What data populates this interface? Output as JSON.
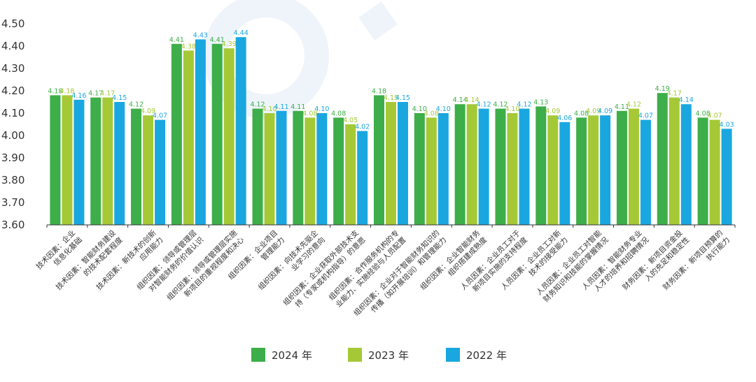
{
  "chart_data": {
    "type": "bar",
    "ylim": [
      3.6,
      4.5
    ],
    "yticks": [
      "4.50",
      "4.40",
      "4.30",
      "4.20",
      "4.10",
      "4.00",
      "3.90",
      "3.80",
      "3.70",
      "3.60"
    ],
    "ytick_values": [
      4.5,
      4.4,
      4.3,
      4.2,
      4.1,
      4.0,
      3.9,
      3.8,
      3.7,
      3.6
    ],
    "grid": false,
    "legend_position": "bottom-center",
    "categories": [
      [
        "技术因素：企业",
        "信息化基础"
      ],
      [
        "技术因素：智能财务建设",
        "的技术配套程度"
      ],
      [
        "技术因素：新技术的创新",
        "应用能力"
      ],
      [
        "组织因素：领导或管理层",
        "对智能财务的价值认识"
      ],
      [
        "组织因素：领导或管理层实施",
        "新项目的重视程度和决心"
      ],
      [
        "组织因素：企业项目",
        "管理能力"
      ],
      [
        "组织因素：向技术先驱企",
        "业学习的意向"
      ],
      [
        "组织因素：企业获取外部技术支",
        "持（专家或机构指导）的意愿"
      ],
      [
        "组织因素：合作服务机构的专",
        "业能力、实施经验与人员配置"
      ],
      [
        "组织因素：企业对于智能财务知识的",
        "传播（如开展培训）和管理能力"
      ],
      [
        "组织因素：企业智能财务",
        "组织搭建成熟度"
      ],
      [
        "人员因素：企业员工对于",
        "新项目实施的支持程度"
      ],
      [
        "人员因素：企业员工对新",
        "技术的接受能力"
      ],
      [
        "人员因素：企业员工对智能",
        "财务知识和技能的掌握情况"
      ],
      [
        "人员因素：智能财务专业",
        "人才的培养和招聘情况"
      ],
      [
        "财务因素：新项目资金投",
        "入的充足和稳定性"
      ],
      [
        "财务因素：新项目预算的",
        "执行能力"
      ]
    ],
    "series": [
      {
        "name": "2024 年",
        "color": "#3DAE49",
        "values": [
          4.18,
          4.17,
          4.12,
          4.41,
          4.41,
          4.12,
          4.11,
          4.08,
          4.18,
          4.1,
          4.14,
          4.12,
          4.13,
          4.08,
          4.11,
          4.19,
          4.08
        ],
        "labels": [
          "4.18",
          "4.17",
          "4.12",
          "4.41",
          "4.41",
          "4.12",
          "4.11",
          "4.08",
          "4.18",
          "4.10",
          "4.14",
          "4.12",
          "4.13",
          "4.08",
          "4.11",
          "4.19",
          "4.08"
        ]
      },
      {
        "name": "2023 年",
        "color": "#A5C936",
        "values": [
          4.18,
          4.17,
          4.09,
          4.38,
          4.39,
          4.1,
          4.08,
          4.05,
          4.15,
          4.08,
          4.14,
          4.1,
          4.09,
          4.09,
          4.12,
          4.17,
          4.07
        ],
        "labels": [
          "4.18",
          "4.17",
          "4.09",
          "4.38",
          "4.39",
          "4.10",
          "4.08",
          "4.05",
          "4.15",
          "4.08",
          "4.14",
          "4.10",
          "4.09",
          "4.09",
          "4.12",
          "4.17",
          "4.07"
        ]
      },
      {
        "name": "2022 年",
        "color": "#1AA7E0",
        "values": [
          4.16,
          4.15,
          4.07,
          4.43,
          4.44,
          4.11,
          4.1,
          4.02,
          4.15,
          4.1,
          4.12,
          4.12,
          4.06,
          4.09,
          4.07,
          4.14,
          4.03
        ],
        "labels": [
          "4.16",
          "4.15",
          "4.07",
          "4.43",
          "4.44",
          "4.11",
          "4.10",
          "4.02",
          "4.15",
          "4.10",
          "4.12",
          "4.12",
          "4.06",
          "4.09",
          "4.07",
          "4.14",
          "4.03"
        ]
      }
    ]
  }
}
